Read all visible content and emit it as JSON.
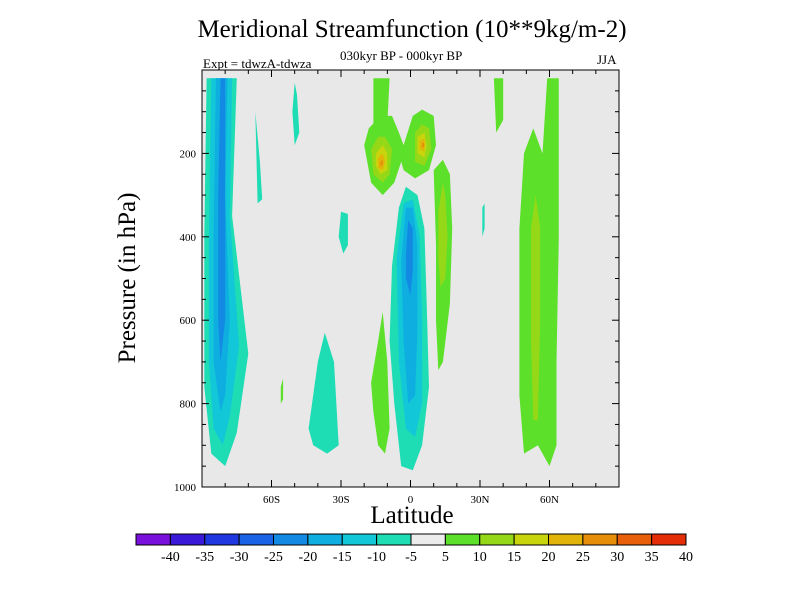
{
  "chart_data": {
    "type": "heatmap",
    "title": "Meridional Streamfunction (10**9kg/m-2)",
    "subtitle": "030kyr BP - 000kyr BP",
    "experiment_label": "Expt = tdwzA-tdwza",
    "season_label": "JJA",
    "xlabel": "Latitude",
    "ylabel": "Pressure (in hPa)",
    "x_ticks": [
      {
        "value": -60,
        "label": "60S"
      },
      {
        "value": -30,
        "label": "30S"
      },
      {
        "value": 0,
        "label": "0"
      },
      {
        "value": 30,
        "label": "30N"
      },
      {
        "value": 60,
        "label": "60N"
      }
    ],
    "y_ticks": [
      {
        "value": 200,
        "label": "200"
      },
      {
        "value": 400,
        "label": "400"
      },
      {
        "value": 600,
        "label": "600"
      },
      {
        "value": 800,
        "label": "800"
      },
      {
        "value": 1000,
        "label": "1000"
      }
    ],
    "xlim": [
      -90,
      90
    ],
    "ylim": [
      1000,
      0
    ],
    "background_color": "#e8e8e8",
    "contour_levels": [
      -40,
      -35,
      -30,
      -25,
      -20,
      -15,
      -10,
      -5,
      5,
      10,
      15,
      20,
      25,
      30,
      35,
      40
    ],
    "colorbar_labels": [
      "-40",
      "-35",
      "-30",
      "-25",
      "-20",
      "-15",
      "-10",
      "-5",
      "5",
      "10",
      "15",
      "20",
      "25",
      "30",
      "35",
      "40"
    ],
    "colorbar_colors": [
      "#7a10dc",
      "#3a1ad8",
      "#2038e0",
      "#1a62e6",
      "#128ae4",
      "#0eaee0",
      "#12c8d8",
      "#1edcb4",
      "#ececec",
      "#5ce02a",
      "#94d818",
      "#c8d40c",
      "#e2b40a",
      "#e68e0a",
      "#e8600a",
      "#e42e08"
    ],
    "regions": [
      {
        "level": -10,
        "color": "#1edcb4",
        "points": [
          [
            -88,
            20
          ],
          [
            -75,
            20
          ],
          [
            -77,
            350
          ],
          [
            -70,
            680
          ],
          [
            -75,
            870
          ],
          [
            -80,
            950
          ],
          [
            -86,
            920
          ],
          [
            -89,
            760
          ],
          [
            -89,
            400
          ]
        ]
      },
      {
        "level": -15,
        "color": "#12c8d8",
        "points": [
          [
            -86,
            20
          ],
          [
            -77,
            20
          ],
          [
            -78,
            350
          ],
          [
            -74,
            660
          ],
          [
            -78,
            830
          ],
          [
            -81,
            900
          ],
          [
            -85,
            860
          ],
          [
            -87,
            700
          ],
          [
            -87,
            400
          ]
        ]
      },
      {
        "level": -20,
        "color": "#0eaee0",
        "points": [
          [
            -84,
            20
          ],
          [
            -79,
            20
          ],
          [
            -80,
            300
          ],
          [
            -78,
            600
          ],
          [
            -80,
            780
          ],
          [
            -82,
            820
          ],
          [
            -85,
            700
          ],
          [
            -85,
            400
          ]
        ]
      },
      {
        "level": -25,
        "color": "#128ae4",
        "points": [
          [
            -82,
            20
          ],
          [
            -80,
            20
          ],
          [
            -80,
            280
          ],
          [
            -80,
            600
          ],
          [
            -82,
            700
          ],
          [
            -83,
            600
          ],
          [
            -83,
            300
          ]
        ]
      },
      {
        "level": -10,
        "color": "#1edcb4",
        "points": [
          [
            -66,
            320
          ],
          [
            -67,
            100
          ],
          [
            -65,
            220
          ],
          [
            -64,
            310
          ]
        ]
      },
      {
        "level": -10,
        "color": "#1edcb4",
        "points": [
          [
            -50,
            30
          ],
          [
            -49,
            60
          ],
          [
            -48,
            150
          ],
          [
            -50,
            180
          ],
          [
            -51,
            100
          ]
        ]
      },
      {
        "level": -10,
        "color": "#1edcb4",
        "points": [
          [
            -44,
            860
          ],
          [
            -40,
            700
          ],
          [
            -37,
            630
          ],
          [
            -33,
            700
          ],
          [
            -31,
            900
          ],
          [
            -36,
            920
          ],
          [
            -42,
            900
          ]
        ]
      },
      {
        "level": -10,
        "color": "#1edcb4",
        "points": [
          [
            -30,
            340
          ],
          [
            -27,
            345
          ],
          [
            -27,
            420
          ],
          [
            -29,
            440
          ],
          [
            -31,
            400
          ]
        ]
      },
      {
        "level": -10,
        "color": "#1edcb4",
        "points": [
          [
            -8,
            470
          ],
          [
            -5,
            330
          ],
          [
            -2,
            280
          ],
          [
            3,
            300
          ],
          [
            6,
            380
          ],
          [
            7,
            560
          ],
          [
            8,
            760
          ],
          [
            5,
            900
          ],
          [
            1,
            960
          ],
          [
            -4,
            950
          ],
          [
            -7,
            800
          ],
          [
            -9,
            650
          ]
        ]
      },
      {
        "level": -15,
        "color": "#12c8d8",
        "points": [
          [
            -6,
            450
          ],
          [
            -3,
            320
          ],
          [
            1,
            310
          ],
          [
            4,
            400
          ],
          [
            5,
            600
          ],
          [
            5,
            800
          ],
          [
            2,
            880
          ],
          [
            -2,
            860
          ],
          [
            -5,
            700
          ]
        ]
      },
      {
        "level": -20,
        "color": "#0eaee0",
        "points": [
          [
            -4,
            460
          ],
          [
            -2,
            330
          ],
          [
            1,
            330
          ],
          [
            3,
            420
          ],
          [
            3,
            620
          ],
          [
            2,
            780
          ],
          [
            -1,
            800
          ],
          [
            -3,
            650
          ]
        ]
      },
      {
        "level": -25,
        "color": "#128ae4",
        "points": [
          [
            -2,
            440
          ],
          [
            -1,
            360
          ],
          [
            1,
            380
          ],
          [
            1,
            480
          ],
          [
            0,
            540
          ],
          [
            -2,
            500
          ]
        ]
      },
      {
        "level": -10,
        "color": "#1edcb4",
        "points": [
          [
            31,
            330
          ],
          [
            32,
            320
          ],
          [
            32,
            380
          ],
          [
            31,
            400
          ]
        ]
      },
      {
        "level": 5,
        "color": "#5ce02a",
        "points": [
          [
            -16,
            20
          ],
          [
            -9,
            20
          ],
          [
            -10,
            130
          ],
          [
            -16,
            130
          ]
        ]
      },
      {
        "level": 5,
        "color": "#5ce02a",
        "points": [
          [
            -20,
            180
          ],
          [
            -18,
            140
          ],
          [
            -13,
            110
          ],
          [
            -8,
            110
          ],
          [
            -5,
            150
          ],
          [
            -3,
            180
          ],
          [
            1,
            110
          ],
          [
            5,
            95
          ],
          [
            10,
            110
          ],
          [
            11,
            180
          ],
          [
            8,
            240
          ],
          [
            2,
            260
          ],
          [
            -3,
            240
          ],
          [
            -4,
            220
          ],
          [
            -7,
            270
          ],
          [
            -12,
            300
          ],
          [
            -17,
            270
          ]
        ]
      },
      {
        "level": 10,
        "color": "#94d818",
        "points": [
          [
            -17,
            190
          ],
          [
            -14,
            160
          ],
          [
            -11,
            160
          ],
          [
            -8,
            190
          ],
          [
            -9,
            250
          ],
          [
            -12,
            270
          ],
          [
            -16,
            250
          ]
        ]
      },
      {
        "level": 10,
        "color": "#94d818",
        "points": [
          [
            2,
            150
          ],
          [
            5,
            130
          ],
          [
            8,
            140
          ],
          [
            9,
            190
          ],
          [
            6,
            230
          ],
          [
            2,
            220
          ]
        ]
      },
      {
        "level": 15,
        "color": "#c8d40c",
        "points": [
          [
            -15,
            200
          ],
          [
            -12,
            180
          ],
          [
            -10,
            200
          ],
          [
            -10,
            240
          ],
          [
            -13,
            250
          ],
          [
            -15,
            230
          ]
        ]
      },
      {
        "level": 15,
        "color": "#c8d40c",
        "points": [
          [
            3,
            160
          ],
          [
            6,
            150
          ],
          [
            7,
            180
          ],
          [
            6,
            210
          ],
          [
            3,
            200
          ]
        ]
      },
      {
        "level": 20,
        "color": "#e2b40a",
        "points": [
          [
            -14,
            210
          ],
          [
            -12,
            200
          ],
          [
            -11,
            220
          ],
          [
            -12,
            240
          ],
          [
            -14,
            235
          ]
        ]
      },
      {
        "level": 20,
        "color": "#e2b40a",
        "points": [
          [
            4,
            170
          ],
          [
            6,
            165
          ],
          [
            6,
            195
          ],
          [
            4,
            190
          ]
        ]
      },
      {
        "level": 25,
        "color": "#e68e0a",
        "points": [
          [
            -13,
            220
          ],
          [
            -12,
            215
          ],
          [
            -12,
            228
          ],
          [
            -13,
            230
          ]
        ]
      },
      {
        "level": 25,
        "color": "#e68e0a",
        "points": [
          [
            5,
            175
          ],
          [
            6,
            175
          ],
          [
            6,
            185
          ],
          [
            5,
            185
          ]
        ]
      },
      {
        "level": 5,
        "color": "#5ce02a",
        "points": [
          [
            10,
            240
          ],
          [
            14,
            215
          ],
          [
            17,
            250
          ],
          [
            18,
            380
          ],
          [
            17,
            560
          ],
          [
            14,
            700
          ],
          [
            12,
            720
          ],
          [
            11,
            600
          ],
          [
            11,
            420
          ]
        ]
      },
      {
        "level": 10,
        "color": "#94d818",
        "points": [
          [
            12,
            340
          ],
          [
            14,
            270
          ],
          [
            15,
            300
          ],
          [
            16,
            400
          ],
          [
            15,
            500
          ],
          [
            13,
            520
          ],
          [
            12,
            450
          ]
        ]
      },
      {
        "level": 5,
        "color": "#5ce02a",
        "points": [
          [
            -17,
            750
          ],
          [
            -14,
            650
          ],
          [
            -12,
            580
          ],
          [
            -10,
            700
          ],
          [
            -9,
            860
          ],
          [
            -11,
            920
          ],
          [
            -14,
            900
          ],
          [
            -16,
            820
          ]
        ]
      },
      {
        "level": 5,
        "color": "#5ce02a",
        "points": [
          [
            -56,
            800
          ],
          [
            -56,
            760
          ],
          [
            -55,
            740
          ],
          [
            -55,
            790
          ]
        ]
      },
      {
        "level": 5,
        "color": "#5ce02a",
        "points": [
          [
            36,
            20
          ],
          [
            40,
            20
          ],
          [
            40,
            120
          ],
          [
            37,
            150
          ]
        ]
      },
      {
        "level": 5,
        "color": "#5ce02a",
        "points": [
          [
            47,
            380
          ],
          [
            49,
            200
          ],
          [
            53,
            140
          ],
          [
            57,
            200
          ],
          [
            59,
            20
          ],
          [
            64,
            20
          ],
          [
            64,
            400
          ],
          [
            63,
            700
          ],
          [
            63,
            900
          ],
          [
            60,
            950
          ],
          [
            55,
            900
          ],
          [
            49,
            920
          ],
          [
            47,
            780
          ]
        ]
      },
      {
        "level": 10,
        "color": "#94d818",
        "points": [
          [
            52,
            380
          ],
          [
            54,
            300
          ],
          [
            56,
            380
          ],
          [
            56,
            600
          ],
          [
            55,
            840
          ],
          [
            53,
            840
          ],
          [
            52,
            650
          ]
        ]
      }
    ]
  }
}
